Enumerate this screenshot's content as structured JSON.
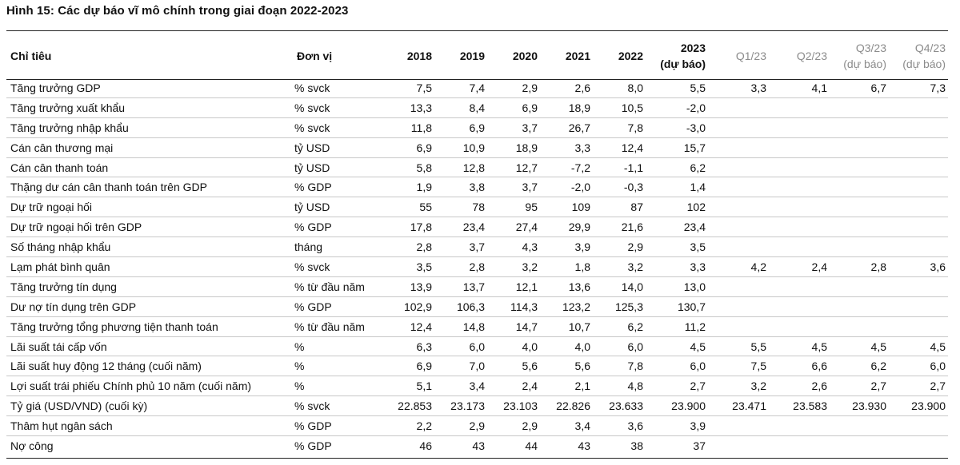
{
  "title": "Hình 15: Các dự báo vĩ mô chính trong giai đoạn 2022-2023",
  "headers": {
    "indicator": "Chỉ tiêu",
    "unit": "Đơn vị",
    "y2018": "2018",
    "y2019": "2019",
    "y2020": "2020",
    "y2021": "2021",
    "y2022": "2022",
    "y2023_line1": "2023",
    "y2023_line2": "(dự báo)",
    "q1": "Q1/23",
    "q2": "Q2/23",
    "q3_line1": "Q3/23",
    "q3_line2": "(dự báo)",
    "q4_line1": "Q4/23",
    "q4_line2": "(dự báo)"
  },
  "rows": [
    {
      "label": "Tăng trưởng GDP",
      "unit": "% svck",
      "values": [
        "7,5",
        "7,4",
        "2,9",
        "2,6",
        "8,0",
        "5,5",
        "3,3",
        "4,1",
        "6,7",
        "7,3"
      ]
    },
    {
      "label": "Tăng trưởng xuất khẩu",
      "unit": "% svck",
      "values": [
        "13,3",
        "8,4",
        "6,9",
        "18,9",
        "10,5",
        "-2,0",
        "",
        "",
        "",
        ""
      ]
    },
    {
      "label": "Tăng trưởng nhập khẩu",
      "unit": "% svck",
      "values": [
        "11,8",
        "6,9",
        "3,7",
        "26,7",
        "7,8",
        "-3,0",
        "",
        "",
        "",
        ""
      ]
    },
    {
      "label": "Cán cân thương mại",
      "unit": "tỷ USD",
      "values": [
        "6,9",
        "10,9",
        "18,9",
        "3,3",
        "12,4",
        "15,7",
        "",
        "",
        "",
        ""
      ]
    },
    {
      "label": "Cán cân thanh toán",
      "unit": "tỷ USD",
      "values": [
        "5,8",
        "12,8",
        "12,7",
        "-7,2",
        "-1,1",
        "6,2",
        "",
        "",
        "",
        ""
      ]
    },
    {
      "label": "Thặng dư cán cân thanh toán trên GDP",
      "unit": "% GDP",
      "values": [
        "1,9",
        "3,8",
        "3,7",
        "-2,0",
        "-0,3",
        "1,4",
        "",
        "",
        "",
        ""
      ]
    },
    {
      "label": "Dự trữ ngoại hối",
      "unit": "tỷ USD",
      "values": [
        "55",
        "78",
        "95",
        "109",
        "87",
        "102",
        "",
        "",
        "",
        ""
      ]
    },
    {
      "label": "Dự trữ ngoại hối trên GDP",
      "unit": "% GDP",
      "values": [
        "17,8",
        "23,4",
        "27,4",
        "29,9",
        "21,6",
        "23,4",
        "",
        "",
        "",
        ""
      ]
    },
    {
      "label": "Số tháng nhập khẩu",
      "unit": "tháng",
      "values": [
        "2,8",
        "3,7",
        "4,3",
        "3,9",
        "2,9",
        "3,5",
        "",
        "",
        "",
        ""
      ]
    },
    {
      "label": "Lạm phát bình quân",
      "unit": "% svck",
      "values": [
        "3,5",
        "2,8",
        "3,2",
        "1,8",
        "3,2",
        "3,3",
        "4,2",
        "2,4",
        "2,8",
        "3,6"
      ]
    },
    {
      "label": "Tăng trưởng tín dụng",
      "unit": "% từ đầu năm",
      "values": [
        "13,9",
        "13,7",
        "12,1",
        "13,6",
        "14,0",
        "13,0",
        "",
        "",
        "",
        ""
      ]
    },
    {
      "label": "Dư nợ tín dụng trên GDP",
      "unit": "% GDP",
      "values": [
        "102,9",
        "106,3",
        "114,3",
        "123,2",
        "125,3",
        "130,7",
        "",
        "",
        "",
        ""
      ]
    },
    {
      "label": "Tăng trưởng tổng phương tiện thanh toán",
      "unit": "% từ đầu năm",
      "values": [
        "12,4",
        "14,8",
        "14,7",
        "10,7",
        "6,2",
        "11,2",
        "",
        "",
        "",
        ""
      ]
    },
    {
      "label": "Lãi suất tái cấp vốn",
      "unit": "%",
      "values": [
        "6,3",
        "6,0",
        "4,0",
        "4,0",
        "6,0",
        "4,5",
        "5,5",
        "4,5",
        "4,5",
        "4,5"
      ]
    },
    {
      "label": "Lãi suất huy động 12 tháng (cuối năm)",
      "unit": "%",
      "values": [
        "6,9",
        "7,0",
        "5,6",
        "5,6",
        "7,8",
        "6,0",
        "7,5",
        "6,6",
        "6,2",
        "6,0"
      ]
    },
    {
      "label": "Lợi suất trái phiếu Chính phủ 10 năm (cuối năm)",
      "unit": "%",
      "values": [
        "5,1",
        "3,4",
        "2,4",
        "2,1",
        "4,8",
        "2,7",
        "3,2",
        "2,6",
        "2,7",
        "2,7"
      ]
    },
    {
      "label": "Tỷ giá (USD/VND) (cuối kỳ)",
      "unit": "% svck",
      "values": [
        "22.853",
        "23.173",
        "23.103",
        "22.826",
        "23.633",
        "23.900",
        "23.471",
        "23.583",
        "23.930",
        "23.900"
      ]
    },
    {
      "label": "Thâm hụt ngân sách",
      "unit": "% GDP",
      "values": [
        "2,2",
        "2,9",
        "2,9",
        "3,4",
        "3,6",
        "3,9",
        "",
        "",
        "",
        ""
      ]
    },
    {
      "label": "Nợ công",
      "unit": "% GDP",
      "values": [
        "46",
        "43",
        "44",
        "43",
        "38",
        "37",
        "",
        "",
        "",
        ""
      ]
    }
  ]
}
